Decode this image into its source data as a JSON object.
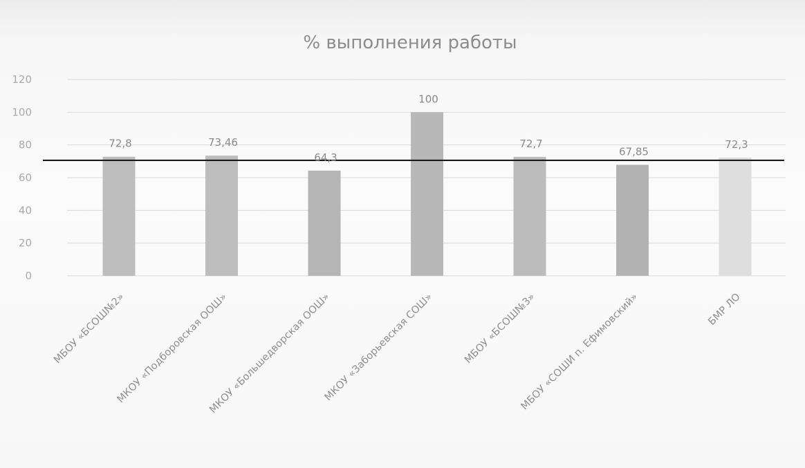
{
  "chart_data": {
    "type": "bar",
    "title": "% выполнения работы",
    "categories": [
      "МБОУ «БСОШ№2»",
      "МКОУ «Подборовская ООШ»",
      "МКОУ «Большедворская ООШ»",
      "МКОУ «Заборьевская СОШ»",
      "МБОУ «БСОШ№3»",
      "МБОУ «СОШИ п. Ефимовский»",
      "БМР ЛО"
    ],
    "values": [
      72.8,
      73.46,
      64.3,
      100,
      72.7,
      67.85,
      72.3
    ],
    "data_labels": [
      "72,8",
      "73,46",
      "64,3",
      "100",
      "72,7",
      "67,85",
      "72,3"
    ],
    "bar_colors": [
      "#bdbdbd",
      "#bdbdbd",
      "#b5b5b5",
      "#b8b8b8",
      "#bcbcbc",
      "#b3b3b3",
      "#dedede"
    ],
    "yticks": [
      0,
      20,
      40,
      60,
      80,
      100,
      120
    ],
    "ylim": [
      0,
      120
    ],
    "reference_line": 70.6,
    "xlabel": "",
    "ylabel": "",
    "grid": true,
    "legend": "none"
  }
}
